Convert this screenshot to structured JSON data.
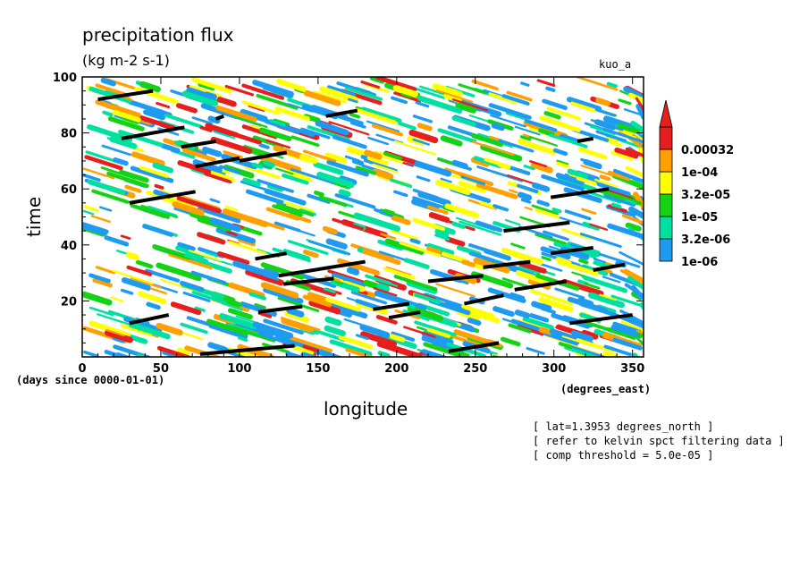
{
  "chart_data": {
    "type": "heatmap",
    "title": "precipitation flux",
    "units": "(kg m-2 s-1)",
    "model_label": "kuo_a",
    "xlabel": "longitude",
    "ylabel": "time",
    "x_units": "(degrees_east)",
    "y_units": "(days since 0000-01-01)",
    "xlim": [
      0,
      357
    ],
    "ylim": [
      0,
      100
    ],
    "x_ticks": [
      0,
      50,
      100,
      150,
      200,
      250,
      300,
      350
    ],
    "y_ticks": [
      20,
      40,
      60,
      80,
      100
    ],
    "colorbar": {
      "levels": [
        "1e-06",
        "3.2e-06",
        "1e-05",
        "3.2e-05",
        "1e-04",
        "0.00032"
      ],
      "colors": [
        "#1e9bf0",
        "#00e0a0",
        "#14d214",
        "#ffff00",
        "#ffa000",
        "#e61e1e"
      ]
    },
    "wave_segments": [
      {
        "x": [
          10,
          45
        ],
        "y": [
          92,
          95
        ]
      },
      {
        "x": [
          85,
          90
        ],
        "y": [
          85,
          86
        ]
      },
      {
        "x": [
          25,
          65
        ],
        "y": [
          78,
          82
        ]
      },
      {
        "x": [
          63,
          85
        ],
        "y": [
          75,
          77
        ]
      },
      {
        "x": [
          155,
          175
        ],
        "y": [
          86,
          88
        ]
      },
      {
        "x": [
          72,
          100
        ],
        "y": [
          68,
          71
        ]
      },
      {
        "x": [
          100,
          130
        ],
        "y": [
          70,
          73
        ]
      },
      {
        "x": [
          30,
          72
        ],
        "y": [
          55,
          59
        ]
      },
      {
        "x": [
          315,
          325
        ],
        "y": [
          77,
          78
        ]
      },
      {
        "x": [
          298,
          335
        ],
        "y": [
          57,
          60
        ]
      },
      {
        "x": [
          268,
          310
        ],
        "y": [
          45,
          48
        ]
      },
      {
        "x": [
          298,
          325
        ],
        "y": [
          37,
          39
        ]
      },
      {
        "x": [
          325,
          345
        ],
        "y": [
          31,
          33
        ]
      },
      {
        "x": [
          110,
          130
        ],
        "y": [
          35,
          37
        ]
      },
      {
        "x": [
          125,
          180
        ],
        "y": [
          29,
          34
        ]
      },
      {
        "x": [
          128,
          160
        ],
        "y": [
          26,
          28
        ]
      },
      {
        "x": [
          220,
          255
        ],
        "y": [
          27,
          29
        ]
      },
      {
        "x": [
          255,
          285
        ],
        "y": [
          32,
          34
        ]
      },
      {
        "x": [
          275,
          308
        ],
        "y": [
          24,
          27
        ]
      },
      {
        "x": [
          243,
          268
        ],
        "y": [
          19,
          22
        ]
      },
      {
        "x": [
          112,
          140
        ],
        "y": [
          16,
          18
        ]
      },
      {
        "x": [
          185,
          208
        ],
        "y": [
          17,
          19
        ]
      },
      {
        "x": [
          195,
          215
        ],
        "y": [
          14,
          16
        ]
      },
      {
        "x": [
          30,
          55
        ],
        "y": [
          12,
          15
        ]
      },
      {
        "x": [
          310,
          350
        ],
        "y": [
          12,
          15
        ]
      },
      {
        "x": [
          75,
          135
        ],
        "y": [
          1,
          4
        ]
      },
      {
        "x": [
          233,
          265
        ],
        "y": [
          2,
          5
        ]
      }
    ],
    "footnotes": [
      "[ lat=1.3953 degrees_north ]",
      "[ refer to kelvin spct filtering data ]",
      "[ comp threshold = 5.0e-05 ]"
    ]
  }
}
